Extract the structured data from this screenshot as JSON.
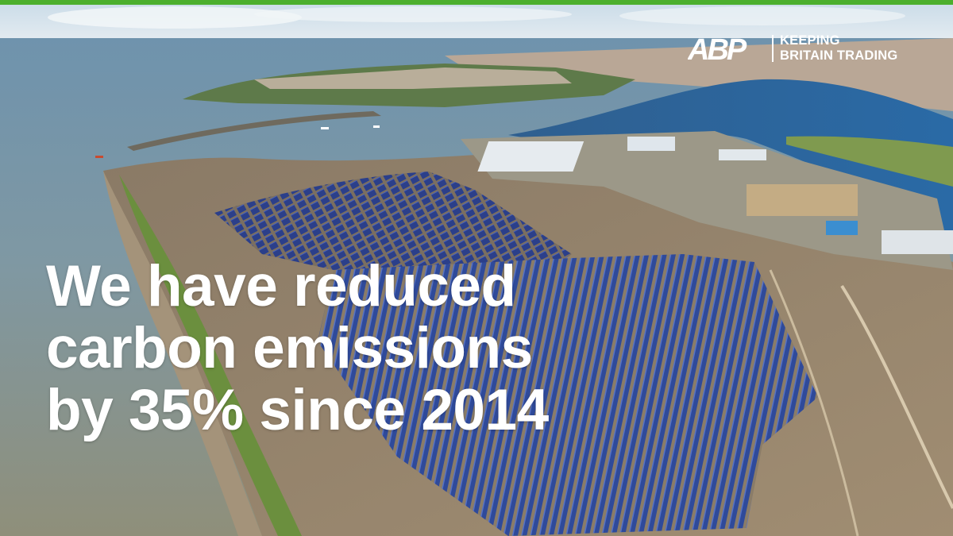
{
  "brand": {
    "logo_letters": "ABP",
    "tagline_line1": "KEEPING",
    "tagline_line2": "BRITAIN TRADING",
    "accent_color": "#4caf2e"
  },
  "headline": {
    "line1": "We have reduced",
    "line2": "carbon emissions",
    "line3": "by 35% since 2014"
  },
  "scene": {
    "description_icons": [
      "sea",
      "breakwater",
      "solar-farm",
      "port-warehouses",
      "town",
      "river-estuary"
    ]
  }
}
